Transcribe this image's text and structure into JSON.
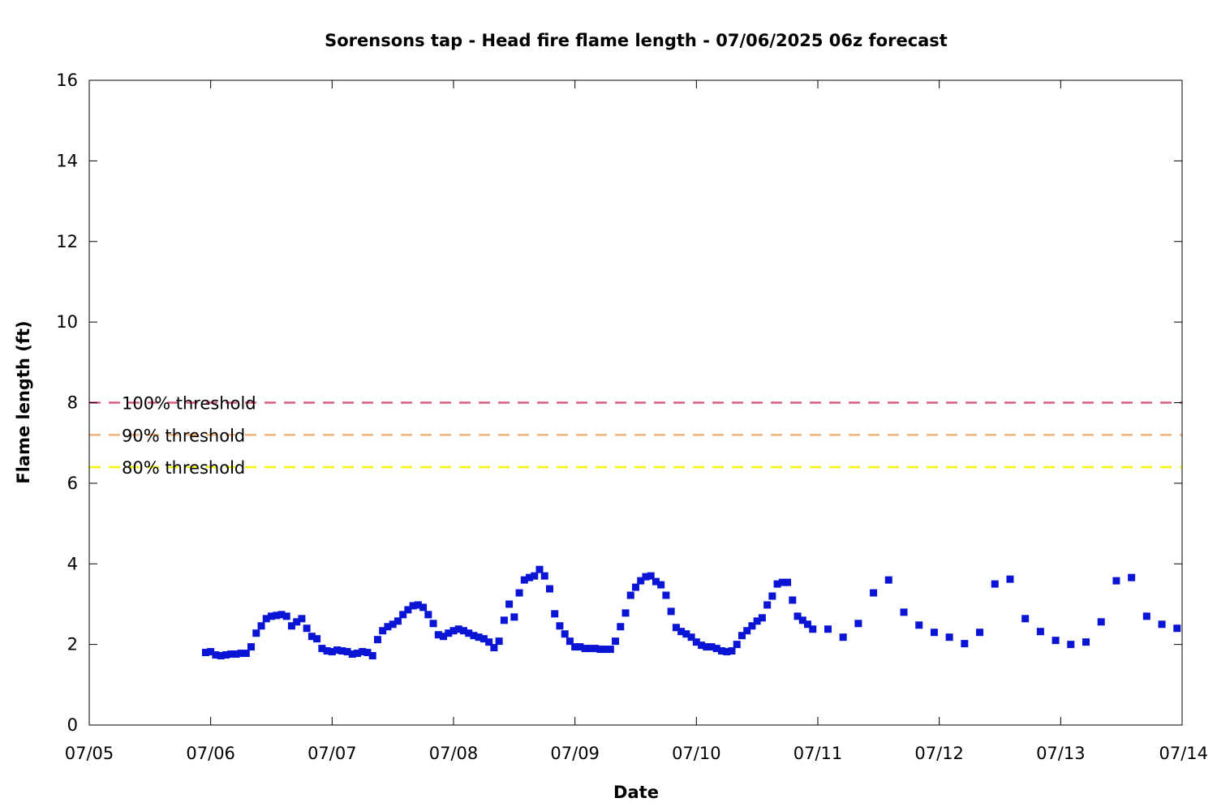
{
  "chart_data": {
    "type": "scatter",
    "title": "Sorensons tap - Head fire flame length - 07/06/2025 06z forecast",
    "xlabel": "Date",
    "ylabel": "Flame length (ft)",
    "x_ticks": [
      "07/05",
      "07/06",
      "07/07",
      "07/08",
      "07/09",
      "07/10",
      "07/11",
      "07/12",
      "07/13",
      "07/14"
    ],
    "x_range": [
      "2025-07-05 00:00",
      "2025-07-14 00:00"
    ],
    "y_ticks": [
      0,
      2,
      4,
      6,
      8,
      10,
      12,
      14,
      16
    ],
    "ylim": [
      0,
      16
    ],
    "grid": false,
    "thresholds": [
      {
        "name": "100% threshold",
        "value": 8.0,
        "color": "#d95f7c",
        "style": "dashed"
      },
      {
        "name": "90% threshold",
        "value": 7.2,
        "color": "#f2b37c",
        "style": "dashed"
      },
      {
        "name": "80% threshold",
        "value": 6.4,
        "color": "#f5f50a",
        "style": "dashed"
      }
    ],
    "legend_placement": "left, next to threshold lines",
    "series": [
      {
        "marker_color": "#0a14d4",
        "marker": "square",
        "points": [
          [
            "2025-07-05 23:00",
            1.8
          ],
          [
            "2025-07-06 00:00",
            1.82
          ],
          [
            "2025-07-06 01:00",
            1.74
          ],
          [
            "2025-07-06 02:00",
            1.72
          ],
          [
            "2025-07-06 03:00",
            1.74
          ],
          [
            "2025-07-06 04:00",
            1.76
          ],
          [
            "2025-07-06 05:00",
            1.76
          ],
          [
            "2025-07-06 06:00",
            1.78
          ],
          [
            "2025-07-06 07:00",
            1.78
          ],
          [
            "2025-07-06 08:00",
            1.94
          ],
          [
            "2025-07-06 09:00",
            2.28
          ],
          [
            "2025-07-06 10:00",
            2.46
          ],
          [
            "2025-07-06 11:00",
            2.64
          ],
          [
            "2025-07-06 12:00",
            2.7
          ],
          [
            "2025-07-06 13:00",
            2.72
          ],
          [
            "2025-07-06 14:00",
            2.74
          ],
          [
            "2025-07-06 15:00",
            2.7
          ],
          [
            "2025-07-06 16:00",
            2.46
          ],
          [
            "2025-07-06 17:00",
            2.56
          ],
          [
            "2025-07-06 18:00",
            2.64
          ],
          [
            "2025-07-06 19:00",
            2.4
          ],
          [
            "2025-07-06 20:00",
            2.2
          ],
          [
            "2025-07-06 21:00",
            2.14
          ],
          [
            "2025-07-06 22:00",
            1.9
          ],
          [
            "2025-07-06 23:00",
            1.84
          ],
          [
            "2025-07-07 00:00",
            1.82
          ],
          [
            "2025-07-07 01:00",
            1.86
          ],
          [
            "2025-07-07 02:00",
            1.84
          ],
          [
            "2025-07-07 03:00",
            1.82
          ],
          [
            "2025-07-07 04:00",
            1.76
          ],
          [
            "2025-07-07 05:00",
            1.78
          ],
          [
            "2025-07-07 06:00",
            1.82
          ],
          [
            "2025-07-07 07:00",
            1.8
          ],
          [
            "2025-07-07 08:00",
            1.72
          ],
          [
            "2025-07-07 09:00",
            2.12
          ],
          [
            "2025-07-07 10:00",
            2.34
          ],
          [
            "2025-07-07 11:00",
            2.44
          ],
          [
            "2025-07-07 12:00",
            2.5
          ],
          [
            "2025-07-07 13:00",
            2.58
          ],
          [
            "2025-07-07 14:00",
            2.74
          ],
          [
            "2025-07-07 15:00",
            2.86
          ],
          [
            "2025-07-07 16:00",
            2.96
          ],
          [
            "2025-07-07 17:00",
            2.98
          ],
          [
            "2025-07-07 18:00",
            2.92
          ],
          [
            "2025-07-07 19:00",
            2.74
          ],
          [
            "2025-07-07 20:00",
            2.52
          ],
          [
            "2025-07-07 21:00",
            2.24
          ],
          [
            "2025-07-07 22:00",
            2.2
          ],
          [
            "2025-07-07 23:00",
            2.28
          ],
          [
            "2025-07-08 00:00",
            2.34
          ],
          [
            "2025-07-08 01:00",
            2.38
          ],
          [
            "2025-07-08 02:00",
            2.34
          ],
          [
            "2025-07-08 03:00",
            2.28
          ],
          [
            "2025-07-08 04:00",
            2.22
          ],
          [
            "2025-07-08 05:00",
            2.18
          ],
          [
            "2025-07-08 06:00",
            2.14
          ],
          [
            "2025-07-08 07:00",
            2.06
          ],
          [
            "2025-07-08 08:00",
            1.92
          ],
          [
            "2025-07-08 09:00",
            2.08
          ],
          [
            "2025-07-08 10:00",
            2.6
          ],
          [
            "2025-07-08 11:00",
            3.0
          ],
          [
            "2025-07-08 12:00",
            2.68
          ],
          [
            "2025-07-08 13:00",
            3.28
          ],
          [
            "2025-07-08 14:00",
            3.6
          ],
          [
            "2025-07-08 15:00",
            3.66
          ],
          [
            "2025-07-08 16:00",
            3.7
          ],
          [
            "2025-07-08 17:00",
            3.86
          ],
          [
            "2025-07-08 18:00",
            3.7
          ],
          [
            "2025-07-08 19:00",
            3.38
          ],
          [
            "2025-07-08 20:00",
            2.76
          ],
          [
            "2025-07-08 21:00",
            2.46
          ],
          [
            "2025-07-08 22:00",
            2.26
          ],
          [
            "2025-07-08 23:00",
            2.08
          ],
          [
            "2025-07-09 00:00",
            1.94
          ],
          [
            "2025-07-09 01:00",
            1.94
          ],
          [
            "2025-07-09 02:00",
            1.9
          ],
          [
            "2025-07-09 03:00",
            1.9
          ],
          [
            "2025-07-09 04:00",
            1.9
          ],
          [
            "2025-07-09 05:00",
            1.88
          ],
          [
            "2025-07-09 06:00",
            1.88
          ],
          [
            "2025-07-09 07:00",
            1.88
          ],
          [
            "2025-07-09 08:00",
            2.08
          ],
          [
            "2025-07-09 09:00",
            2.44
          ],
          [
            "2025-07-09 10:00",
            2.78
          ],
          [
            "2025-07-09 11:00",
            3.22
          ],
          [
            "2025-07-09 12:00",
            3.42
          ],
          [
            "2025-07-09 13:00",
            3.58
          ],
          [
            "2025-07-09 14:00",
            3.68
          ],
          [
            "2025-07-09 15:00",
            3.7
          ],
          [
            "2025-07-09 16:00",
            3.56
          ],
          [
            "2025-07-09 17:00",
            3.48
          ],
          [
            "2025-07-09 18:00",
            3.22
          ],
          [
            "2025-07-09 19:00",
            2.82
          ],
          [
            "2025-07-09 20:00",
            2.42
          ],
          [
            "2025-07-09 21:00",
            2.32
          ],
          [
            "2025-07-09 22:00",
            2.26
          ],
          [
            "2025-07-09 23:00",
            2.18
          ],
          [
            "2025-07-10 00:00",
            2.06
          ],
          [
            "2025-07-10 01:00",
            1.98
          ],
          [
            "2025-07-10 02:00",
            1.94
          ],
          [
            "2025-07-10 03:00",
            1.94
          ],
          [
            "2025-07-10 04:00",
            1.9
          ],
          [
            "2025-07-10 05:00",
            1.84
          ],
          [
            "2025-07-10 06:00",
            1.82
          ],
          [
            "2025-07-10 07:00",
            1.84
          ],
          [
            "2025-07-10 08:00",
            2.0
          ],
          [
            "2025-07-10 09:00",
            2.22
          ],
          [
            "2025-07-10 10:00",
            2.34
          ],
          [
            "2025-07-10 11:00",
            2.46
          ],
          [
            "2025-07-10 12:00",
            2.58
          ],
          [
            "2025-07-10 13:00",
            2.66
          ],
          [
            "2025-07-10 14:00",
            2.98
          ],
          [
            "2025-07-10 15:00",
            3.2
          ],
          [
            "2025-07-10 16:00",
            3.5
          ],
          [
            "2025-07-10 17:00",
            3.54
          ],
          [
            "2025-07-10 18:00",
            3.54
          ],
          [
            "2025-07-10 19:00",
            3.1
          ],
          [
            "2025-07-10 20:00",
            2.7
          ],
          [
            "2025-07-10 21:00",
            2.6
          ],
          [
            "2025-07-10 22:00",
            2.5
          ],
          [
            "2025-07-10 23:00",
            2.38
          ],
          [
            "2025-07-11 02:00",
            2.38
          ],
          [
            "2025-07-11 05:00",
            2.18
          ],
          [
            "2025-07-11 08:00",
            2.52
          ],
          [
            "2025-07-11 11:00",
            3.28
          ],
          [
            "2025-07-11 14:00",
            3.6
          ],
          [
            "2025-07-11 17:00",
            2.8
          ],
          [
            "2025-07-11 20:00",
            2.48
          ],
          [
            "2025-07-11 23:00",
            2.3
          ],
          [
            "2025-07-12 02:00",
            2.18
          ],
          [
            "2025-07-12 05:00",
            2.02
          ],
          [
            "2025-07-12 08:00",
            2.3
          ],
          [
            "2025-07-12 11:00",
            3.5
          ],
          [
            "2025-07-12 14:00",
            3.62
          ],
          [
            "2025-07-12 17:00",
            2.64
          ],
          [
            "2025-07-12 20:00",
            2.32
          ],
          [
            "2025-07-12 23:00",
            2.1
          ],
          [
            "2025-07-13 02:00",
            2.0
          ],
          [
            "2025-07-13 05:00",
            2.06
          ],
          [
            "2025-07-13 08:00",
            2.56
          ],
          [
            "2025-07-13 11:00",
            3.58
          ],
          [
            "2025-07-13 14:00",
            3.66
          ],
          [
            "2025-07-13 17:00",
            2.7
          ],
          [
            "2025-07-13 20:00",
            2.5
          ],
          [
            "2025-07-13 23:00",
            2.4
          ]
        ]
      }
    ]
  }
}
